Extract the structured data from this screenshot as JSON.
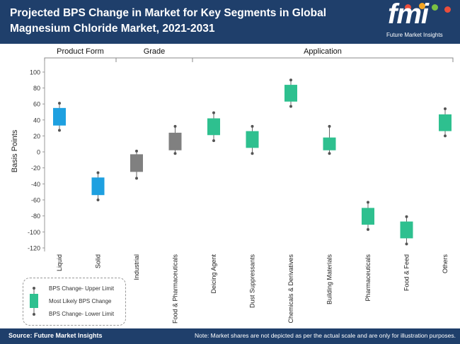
{
  "header": {
    "title": "Projected BPS Change in Market for Key Segments in Global Magnesium Chloride Market, 2021-2031",
    "logo_text": "fmi",
    "logo_subtitle": "Future Market Insights",
    "logo_dot_colors": [
      "#e94e3c",
      "#f5a623",
      "#7ac143",
      "#2a9fd8",
      "#e94e3c"
    ]
  },
  "footer": {
    "source": "Source: Future Market Insights",
    "note": "Note: Market shares are not depicted as per the actual scale and are only for illustration purposes."
  },
  "legend": {
    "upper": "BPS Change- Upper Limit",
    "likely": "Most Likely BPS Change",
    "lower": "BPS Change- Lower Limit"
  },
  "chart_data": {
    "type": "box",
    "ylabel": "Basis Points",
    "ylim": [
      -120,
      100
    ],
    "yticks": [
      100,
      80,
      60,
      40,
      20,
      0,
      -20,
      -40,
      -60,
      -80,
      -100,
      -120
    ],
    "groups": [
      {
        "label": "Product Form",
        "start": 0,
        "end": 1
      },
      {
        "label": "Grade",
        "start": 2,
        "end": 3
      },
      {
        "label": "Application",
        "start": 4,
        "end": 10
      }
    ],
    "categories": [
      {
        "name": "Liquid",
        "upper": 61,
        "box_top": 55,
        "box_bottom": 33,
        "lower": 27,
        "color": "#1ea0e0"
      },
      {
        "name": "Solid",
        "upper": -26,
        "box_top": -32,
        "box_bottom": -54,
        "lower": -60,
        "color": "#1ea0e0"
      },
      {
        "name": "Industrial",
        "upper": 1,
        "box_top": -3,
        "box_bottom": -25,
        "lower": -33,
        "color": "#808080"
      },
      {
        "name": "Food & Pharmaceuticals",
        "upper": 32,
        "box_top": 24,
        "box_bottom": 2,
        "lower": -2,
        "color": "#808080"
      },
      {
        "name": "Deicing Agent",
        "upper": 49,
        "box_top": 42,
        "box_bottom": 21,
        "lower": 14,
        "color": "#2ec08f"
      },
      {
        "name": "Dust Suppressants",
        "upper": 32,
        "box_top": 26,
        "box_bottom": 5,
        "lower": -2,
        "color": "#2ec08f"
      },
      {
        "name": "Chemicals & Derivatives",
        "upper": 90,
        "box_top": 84,
        "box_bottom": 63,
        "lower": 57,
        "color": "#2ec08f"
      },
      {
        "name": "Building Materials",
        "upper": 32,
        "box_top": 18,
        "box_bottom": 2,
        "lower": -2,
        "color": "#2ec08f"
      },
      {
        "name": "Pharmaceuticals",
        "upper": -63,
        "box_top": -70,
        "box_bottom": -91,
        "lower": -97,
        "color": "#2ec08f"
      },
      {
        "name": "Food & Feed",
        "upper": -81,
        "box_top": -87,
        "box_bottom": -108,
        "lower": -115,
        "color": "#2ec08f"
      },
      {
        "name": "Others",
        "upper": 54,
        "box_top": 47,
        "box_bottom": 26,
        "lower": 20,
        "color": "#2ec08f"
      }
    ]
  }
}
